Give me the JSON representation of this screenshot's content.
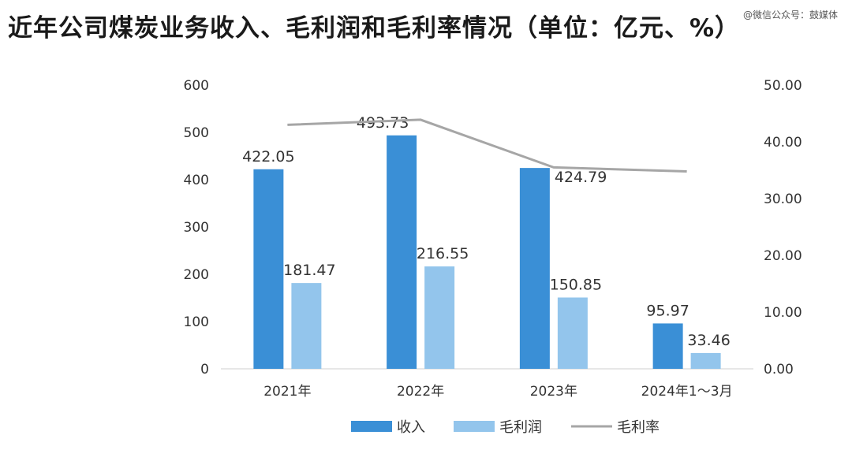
{
  "title": "近年公司煤炭业务收入、毛利润和毛利率情况（单位：亿元、%）",
  "watermark": "@微信公众号：鼓媒体",
  "chart_data": {
    "type": "bar",
    "categories": [
      "2021年",
      "2022年",
      "2023年",
      "2024年1～3月"
    ],
    "series": [
      {
        "name": "收入",
        "kind": "bar",
        "axis": "left",
        "color": "#3a8fd6",
        "values": [
          422.05,
          493.73,
          424.79,
          95.97
        ],
        "labels": [
          "422.05",
          "493.73",
          "424.79",
          "95.97"
        ]
      },
      {
        "name": "毛利润",
        "kind": "bar",
        "axis": "left",
        "color": "#93c5ec",
        "values": [
          181.47,
          216.55,
          150.85,
          33.46
        ],
        "labels": [
          "181.47",
          "216.55",
          "150.85",
          "33.46"
        ]
      },
      {
        "name": "毛利率",
        "kind": "line",
        "axis": "right",
        "color": "#a6a6a6",
        "values": [
          43.0,
          43.9,
          35.5,
          34.8
        ]
      }
    ],
    "y_left": {
      "min": 0,
      "max": 600,
      "ticks": [
        "0",
        "100",
        "200",
        "300",
        "400",
        "500",
        "600"
      ]
    },
    "y_right": {
      "min": 0,
      "max": 50,
      "ticks": [
        "0.00",
        "10.00",
        "20.00",
        "30.00",
        "40.00",
        "50.00"
      ]
    },
    "legend_position": "bottom-center",
    "grid": false
  }
}
